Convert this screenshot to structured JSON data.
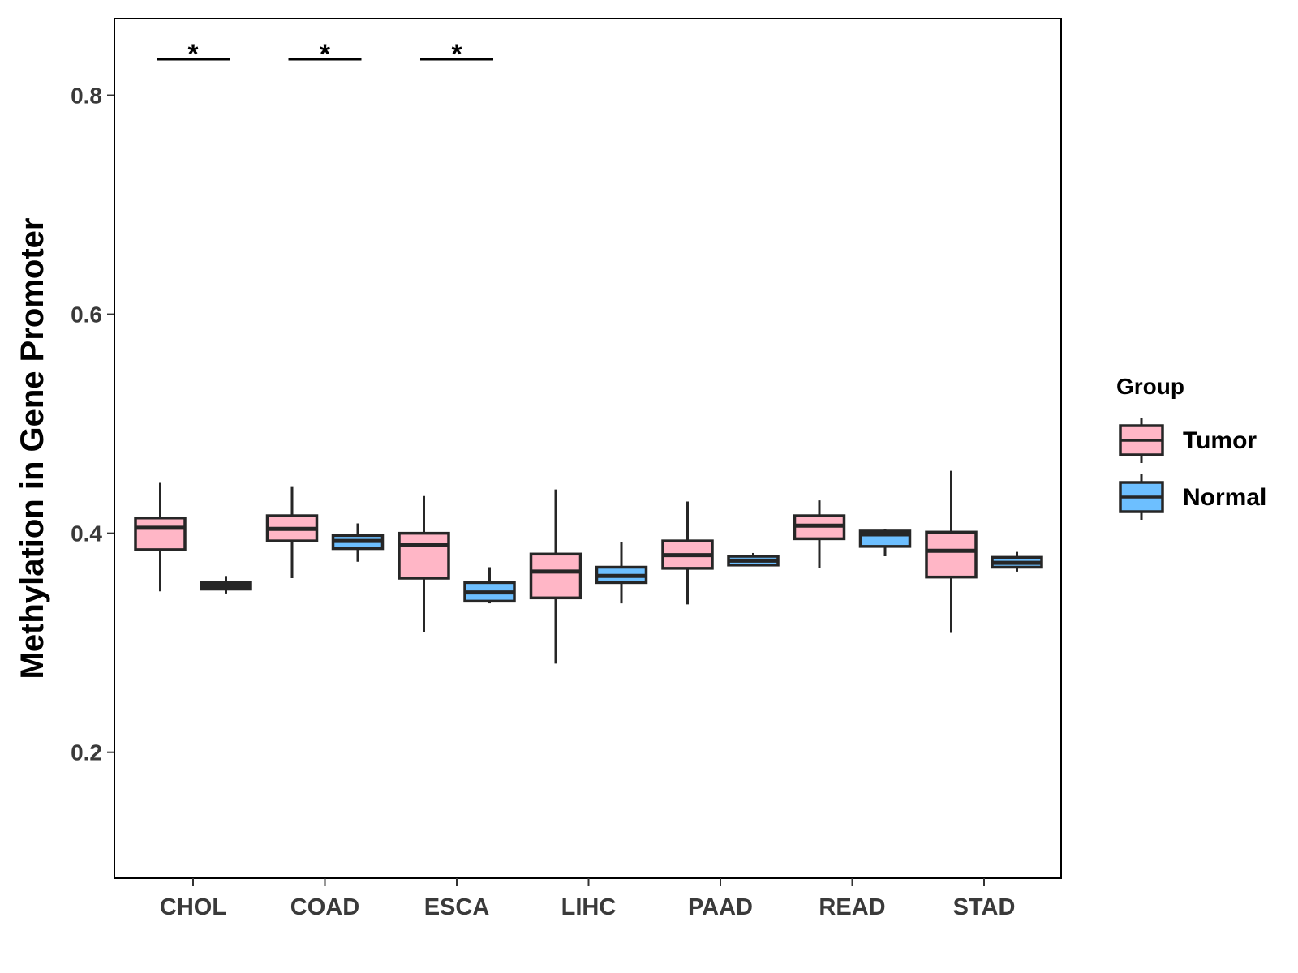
{
  "chart_data": {
    "type": "boxplot",
    "title": "",
    "xlabel": "",
    "ylabel": "Methylation in Gene Promoter",
    "ylim": [
      0.085,
      0.87
    ],
    "yticks": [
      "0.2",
      "0.4",
      "0.6",
      "0.8"
    ],
    "categories": [
      "CHOL",
      "COAD",
      "ESCA",
      "LIHC",
      "PAAD",
      "READ",
      "STAD"
    ],
    "legend": {
      "title": "Group",
      "position": "right",
      "entries": [
        {
          "name": "Tumor",
          "color": "#ffb6c6"
        },
        {
          "name": "Normal",
          "color": "#6dbfff"
        }
      ]
    },
    "series": [
      {
        "name": "Tumor",
        "color": "#ffb6c6",
        "boxes": [
          {
            "category": "CHOL",
            "min": 0.347,
            "q1": 0.385,
            "median": 0.405,
            "q3": 0.414,
            "max": 0.446
          },
          {
            "category": "COAD",
            "min": 0.359,
            "q1": 0.393,
            "median": 0.404,
            "q3": 0.416,
            "max": 0.443
          },
          {
            "category": "ESCA",
            "min": 0.31,
            "q1": 0.359,
            "median": 0.389,
            "q3": 0.4,
            "max": 0.434
          },
          {
            "category": "LIHC",
            "min": 0.281,
            "q1": 0.341,
            "median": 0.365,
            "q3": 0.381,
            "max": 0.44
          },
          {
            "category": "PAAD",
            "min": 0.335,
            "q1": 0.368,
            "median": 0.38,
            "q3": 0.393,
            "max": 0.429
          },
          {
            "category": "READ",
            "min": 0.368,
            "q1": 0.395,
            "median": 0.407,
            "q3": 0.416,
            "max": 0.43
          },
          {
            "category": "STAD",
            "min": 0.309,
            "q1": 0.36,
            "median": 0.384,
            "q3": 0.401,
            "max": 0.457
          }
        ]
      },
      {
        "name": "Normal",
        "color": "#6dbfff",
        "boxes": [
          {
            "category": "CHOL",
            "min": 0.345,
            "q1": 0.349,
            "median": 0.352,
            "q3": 0.355,
            "max": 0.361
          },
          {
            "category": "COAD",
            "min": 0.374,
            "q1": 0.386,
            "median": 0.393,
            "q3": 0.398,
            "max": 0.409
          },
          {
            "category": "ESCA",
            "min": 0.336,
            "q1": 0.338,
            "median": 0.346,
            "q3": 0.355,
            "max": 0.369
          },
          {
            "category": "LIHC",
            "min": 0.336,
            "q1": 0.355,
            "median": 0.361,
            "q3": 0.369,
            "max": 0.392
          },
          {
            "category": "PAAD",
            "min": 0.37,
            "q1": 0.371,
            "median": 0.375,
            "q3": 0.379,
            "max": 0.382
          },
          {
            "category": "READ",
            "min": 0.379,
            "q1": 0.388,
            "median": 0.399,
            "q3": 0.402,
            "max": 0.404
          },
          {
            "category": "STAD",
            "min": 0.365,
            "q1": 0.369,
            "median": 0.373,
            "q3": 0.378,
            "max": 0.383
          }
        ]
      }
    ],
    "annotations": [
      {
        "category": "CHOL",
        "label": "*",
        "y": 0.833
      },
      {
        "category": "COAD",
        "label": "*",
        "y": 0.833
      },
      {
        "category": "ESCA",
        "label": "*",
        "y": 0.833
      }
    ]
  }
}
